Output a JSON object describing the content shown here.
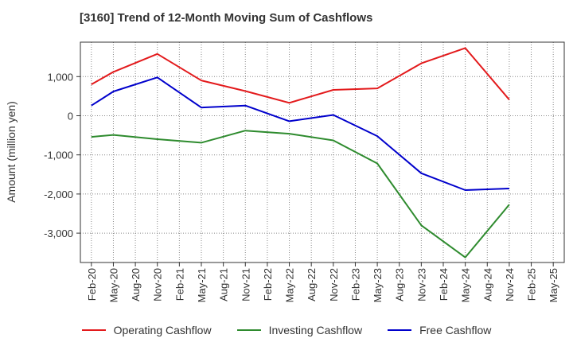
{
  "chart_data": {
    "type": "line",
    "title": "[3160]  Trend of 12-Month Moving Sum of Cashflows",
    "ylabel": "Amount (million yen)",
    "xlabel": "",
    "categories": [
      "Feb-20",
      "May-20",
      "Aug-20",
      "Nov-20",
      "Feb-21",
      "May-21",
      "Aug-21",
      "Nov-21",
      "Feb-22",
      "May-22",
      "Aug-22",
      "Nov-22",
      "Feb-23",
      "May-23",
      "Aug-23",
      "Nov-23",
      "Feb-24",
      "May-24",
      "Aug-24",
      "Nov-24",
      "Feb-25",
      "May-25"
    ],
    "yticks": [
      1000,
      0,
      -1000,
      -2000,
      -3000
    ],
    "ytick_labels": [
      "1,000",
      "0",
      "-1,000",
      "-2,000",
      "-3,000"
    ],
    "ylim": [
      -3750,
      1880
    ],
    "grid": true,
    "legend_position": "bottom",
    "series": [
      {
        "name": "Operating Cashflow",
        "color": "#e31a1c",
        "values": [
          800,
          1120,
          null,
          1580,
          null,
          900,
          null,
          630,
          null,
          330,
          null,
          660,
          null,
          700,
          null,
          1340,
          null,
          1730,
          null,
          410,
          null,
          null
        ]
      },
      {
        "name": "Investing Cashflow",
        "color": "#2e8b2e",
        "values": [
          -540,
          -490,
          null,
          -600,
          null,
          -690,
          null,
          -380,
          null,
          -460,
          null,
          -630,
          null,
          -1220,
          null,
          -2800,
          null,
          -3620,
          null,
          -2270,
          null,
          null
        ]
      },
      {
        "name": "Free Cashflow",
        "color": "#0000cc",
        "values": [
          260,
          620,
          null,
          980,
          null,
          210,
          null,
          260,
          null,
          -140,
          null,
          20,
          null,
          -520,
          null,
          -1470,
          null,
          -1900,
          null,
          -1860,
          null,
          null
        ]
      }
    ]
  }
}
